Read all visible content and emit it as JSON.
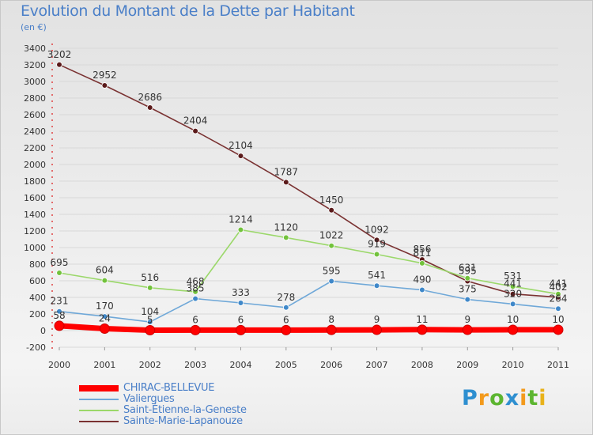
{
  "title": "Evolution du Montant de la Dette par Habitant",
  "unit": "(en €)",
  "brand": {
    "text": "Proxiti",
    "letters": [
      {
        "char": "P",
        "color": "#2e8fd0"
      },
      {
        "char": "r",
        "color": "#f39a1c"
      },
      {
        "char": "o",
        "color": "#5cb530"
      },
      {
        "char": "x",
        "color": "#2e8fd0"
      },
      {
        "char": "i",
        "color": "#f39a1c"
      },
      {
        "char": "t",
        "color": "#5cb530"
      },
      {
        "char": "i",
        "color": "#e8b21a"
      }
    ]
  },
  "chart_data": {
    "type": "line",
    "title": "Evolution du Montant de la Dette par Habitant",
    "ylabel": "(en €)",
    "x": [
      "2000",
      "2001",
      "2002",
      "2003",
      "2004",
      "2005",
      "2006",
      "2007",
      "2008",
      "2009",
      "2010",
      "2011"
    ],
    "ylim": [
      -200,
      3400
    ],
    "ytick_step": 200,
    "yticks": [
      "-200",
      "0",
      "200",
      "400",
      "600",
      "800",
      "1000",
      "1200",
      "1400",
      "1600",
      "1800",
      "2000",
      "2200",
      "2400",
      "2600",
      "2800",
      "3000",
      "3200",
      "3400"
    ],
    "legend_position": "bottom-left",
    "series": [
      {
        "name": "CHIRAC-BELLEVUE",
        "color": "#ff0000",
        "width": "thick",
        "values": [
          58,
          24,
          5,
          6,
          6,
          6,
          8,
          9,
          11,
          9,
          10,
          10
        ],
        "labels": [
          "58",
          "24",
          "5",
          "6",
          "6",
          "6",
          "8",
          "9",
          "11",
          "9",
          "10",
          "10"
        ]
      },
      {
        "name": "Valiergues",
        "color": "#6fa8d8",
        "marker": "#3f88c9",
        "values": [
          231,
          170,
          104,
          385,
          333,
          278,
          595,
          541,
          490,
          375,
          320,
          264
        ],
        "labels": [
          "231",
          "170",
          "104",
          "385",
          "333",
          "278",
          "595",
          "541",
          "490",
          "375",
          "320",
          "264"
        ]
      },
      {
        "name": "Saint-Étienne-la-Geneste",
        "color": "#9bd86a",
        "marker": "#72c23c",
        "values": [
          695,
          604,
          516,
          468,
          1214,
          1120,
          1022,
          919,
          811,
          631,
          531,
          441
        ],
        "labels": [
          "695",
          "604",
          "516",
          "468",
          "1214",
          "1120",
          "1022",
          "919",
          "811",
          "631",
          "531",
          "441"
        ]
      },
      {
        "name": "Sainte-Marie-Lapanouze",
        "color": "#7a3232",
        "marker": "#5a1a1a",
        "values": [
          3202,
          2952,
          2686,
          2404,
          2104,
          1787,
          1450,
          1092,
          856,
          595,
          441,
          402
        ],
        "labels": [
          "3202",
          "2952",
          "2686",
          "2404",
          "2104",
          "1787",
          "1450",
          "1092",
          "856",
          "595",
          "441",
          "402"
        ]
      }
    ]
  }
}
